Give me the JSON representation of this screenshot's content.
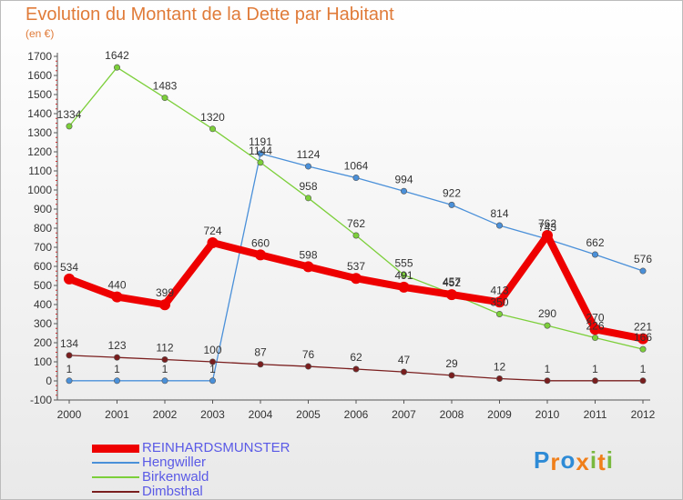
{
  "header": {
    "title": "Evolution du Montant de la Dette par Habitant",
    "unit": "(en €)"
  },
  "logo": {
    "text": "Proxiti",
    "letters": [
      "P",
      "r",
      "o",
      "x",
      "i",
      "t",
      "i"
    ],
    "colors": [
      "#2e8bd6",
      "#f07f1a",
      "#2e8bd6",
      "#f07f1a",
      "#7ab93f",
      "#f07f1a",
      "#7ab93f"
    ]
  },
  "chart_data": {
    "type": "line",
    "x": [
      "2000",
      "2001",
      "2002",
      "2003",
      "2004",
      "2005",
      "2006",
      "2007",
      "2008",
      "2009",
      "2010",
      "2011",
      "2012"
    ],
    "ylim": [
      -100,
      1700
    ],
    "ytick_step": 100,
    "grid": false,
    "legend_position": "bottom-left",
    "series": [
      {
        "name": "REINHARDSMUNSTER",
        "color": "#ee0000",
        "width": "thick",
        "values": [
          534,
          440,
          399,
          724,
          660,
          598,
          537,
          491,
          452,
          413,
          762,
          270,
          221
        ]
      },
      {
        "name": "Hengwiller",
        "color": "#4a90d9",
        "width": "thin",
        "values": [
          1,
          1,
          1,
          1,
          1191,
          1124,
          1064,
          994,
          922,
          814,
          743,
          662,
          576
        ]
      },
      {
        "name": "Birkenwald",
        "color": "#7ccf3a",
        "width": "thin",
        "values": [
          1334,
          1642,
          1483,
          1320,
          1144,
          958,
          762,
          555,
          457,
          350,
          290,
          226,
          166
        ]
      },
      {
        "name": "Dimbsthal",
        "color": "#7a1e1e",
        "width": "thin",
        "values": [
          134,
          123,
          112,
          100,
          87,
          76,
          62,
          47,
          29,
          12,
          1,
          1,
          1
        ]
      }
    ]
  }
}
